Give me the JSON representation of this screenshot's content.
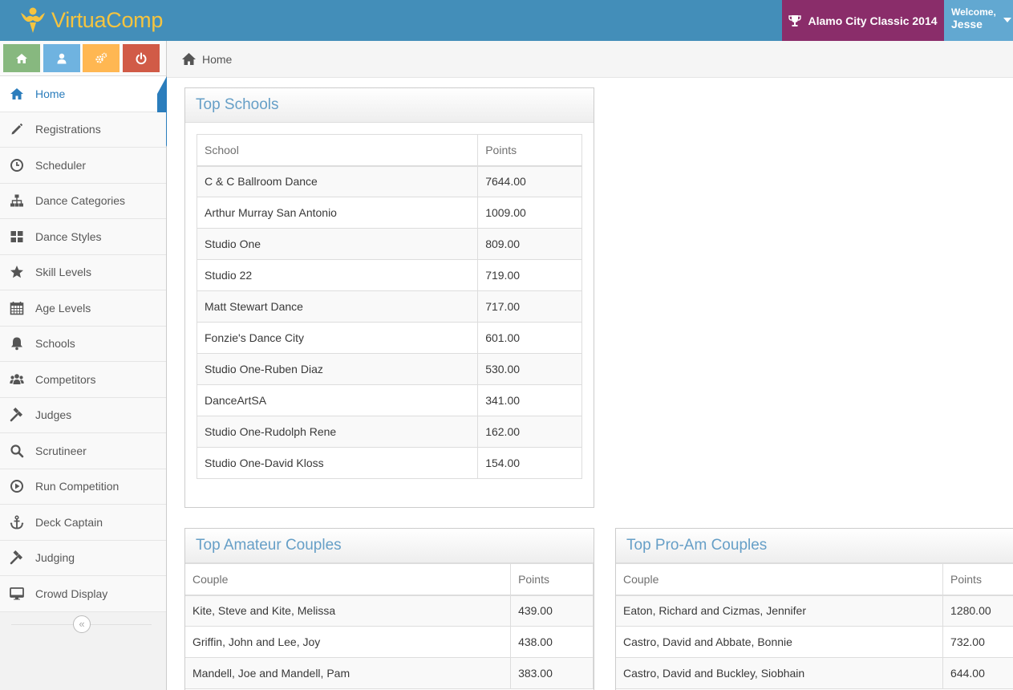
{
  "brand": {
    "name": "VirtuaComp"
  },
  "event": {
    "name": "Alamo City Classic 2014"
  },
  "user": {
    "greeting": "Welcome,",
    "name": "Jesse"
  },
  "colors": {
    "navbar": "#438eb9",
    "brand_text": "#f6c43f",
    "event_badge": "#8a2d6a",
    "user_menu": "#62a8d1",
    "accent": "#2b7dbc",
    "widget_title": "#669fc7"
  },
  "shortcuts": [
    {
      "icon": "home-icon",
      "color": "#87b87f"
    },
    {
      "icon": "user-icon",
      "color": "#6fb3e0"
    },
    {
      "icon": "cogs-icon",
      "color": "#ffb752"
    },
    {
      "icon": "power-icon",
      "color": "#d15b47"
    }
  ],
  "sidebar": {
    "items": [
      {
        "label": "Home",
        "icon": "home-icon",
        "active": true
      },
      {
        "label": "Registrations",
        "icon": "pencil-icon"
      },
      {
        "label": "Scheduler",
        "icon": "clock-icon"
      },
      {
        "label": "Dance Categories",
        "icon": "sitemap-icon"
      },
      {
        "label": "Dance Styles",
        "icon": "grid-icon"
      },
      {
        "label": "Skill Levels",
        "icon": "star-icon"
      },
      {
        "label": "Age Levels",
        "icon": "calendar-icon"
      },
      {
        "label": "Schools",
        "icon": "bell-icon"
      },
      {
        "label": "Competitors",
        "icon": "group-icon"
      },
      {
        "label": "Judges",
        "icon": "gavel-icon"
      },
      {
        "label": "Scrutineer",
        "icon": "search-icon"
      },
      {
        "label": "Run Competition",
        "icon": "play-circle-icon"
      },
      {
        "label": "Deck Captain",
        "icon": "anchor-icon"
      },
      {
        "label": "Judging",
        "icon": "gavel-icon"
      },
      {
        "label": "Crowd Display",
        "icon": "desktop-icon"
      }
    ],
    "collapse_symbol": "«"
  },
  "breadcrumb": {
    "label": "Home"
  },
  "top_schools": {
    "title": "Top Schools",
    "headers": [
      "School",
      "Points"
    ],
    "rows": [
      [
        "C & C Ballroom Dance",
        "7644.00"
      ],
      [
        "Arthur Murray San Antonio",
        "1009.00"
      ],
      [
        "Studio One",
        "809.00"
      ],
      [
        "Studio 22",
        "719.00"
      ],
      [
        "Matt Stewart Dance",
        "717.00"
      ],
      [
        "Fonzie's Dance City",
        "601.00"
      ],
      [
        "Studio One-Ruben Diaz",
        "530.00"
      ],
      [
        "DanceArtSA",
        "341.00"
      ],
      [
        "Studio One-Rudolph Rene",
        "162.00"
      ],
      [
        "Studio One-David Kloss",
        "154.00"
      ]
    ]
  },
  "top_amateur": {
    "title": "Top Amateur Couples",
    "headers": [
      "Couple",
      "Points"
    ],
    "rows": [
      [
        "Kite, Steve and Kite, Melissa",
        "439.00"
      ],
      [
        "Griffin, John and Lee, Joy",
        "438.00"
      ],
      [
        "Mandell, Joe and Mandell, Pam",
        "383.00"
      ]
    ]
  },
  "top_proam": {
    "title": "Top Pro-Am Couples",
    "headers": [
      "Couple",
      "Points"
    ],
    "rows": [
      [
        "Eaton, Richard and Cizmas, Jennifer",
        "1280.00"
      ],
      [
        "Castro, David and Abbate, Bonnie",
        "732.00"
      ],
      [
        "Castro, David and Buckley, Siobhain",
        "644.00"
      ]
    ]
  }
}
